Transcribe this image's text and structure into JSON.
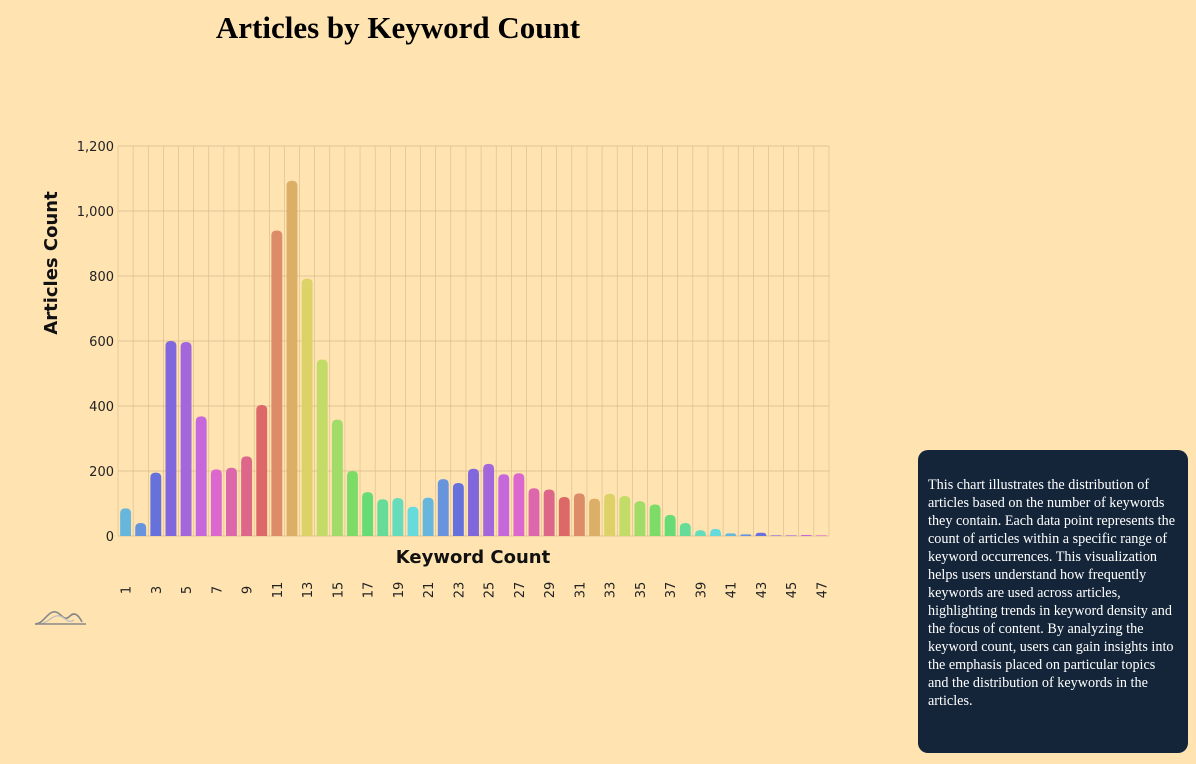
{
  "chart_data": {
    "type": "bar",
    "title": "Articles by Keyword Count",
    "xlabel": "Keyword Count",
    "ylabel": "Articles Count",
    "ylim": [
      0,
      1200
    ],
    "yticks": [
      0,
      200,
      400,
      600,
      800,
      1000,
      1200
    ],
    "ytick_labels": [
      "0",
      "200",
      "400",
      "600",
      "800",
      "1,000",
      "1,200"
    ],
    "grid": true,
    "categories": [
      "1",
      "2",
      "3",
      "4",
      "5",
      "6",
      "7",
      "8",
      "9",
      "10",
      "11",
      "12",
      "13",
      "14",
      "15",
      "16",
      "17",
      "18",
      "19",
      "20",
      "21",
      "22",
      "23",
      "24",
      "25",
      "26",
      "27",
      "28",
      "29",
      "30",
      "31",
      "32",
      "33",
      "34",
      "35",
      "36",
      "37",
      "38",
      "39",
      "40",
      "41",
      "42",
      "43",
      "44",
      "45",
      "46",
      "47"
    ],
    "values": [
      85,
      40,
      195,
      600,
      597,
      368,
      205,
      210,
      245,
      403,
      940,
      1093,
      792,
      543,
      358,
      200,
      135,
      113,
      117,
      90,
      118,
      175,
      163,
      207,
      222,
      190,
      193,
      147,
      143,
      120,
      131,
      115,
      130,
      123,
      107,
      97,
      65,
      40,
      18,
      22,
      8,
      5,
      10,
      2,
      2,
      3,
      2
    ],
    "colors": [
      "#67B7DC",
      "#6794DC",
      "#6771DC",
      "#8067DC",
      "#A367DC",
      "#C767DC",
      "#DC67CE",
      "#DC67AB",
      "#DC6788",
      "#DC6967",
      "#DC8C67",
      "#DCAF67",
      "#DCD267",
      "#C3DC67",
      "#A0DC67",
      "#7DDC67",
      "#67DC75",
      "#67DC98",
      "#67DCBB",
      "#67DADC",
      "#67B7DC",
      "#6794DC",
      "#6771DC",
      "#8067DC",
      "#A367DC",
      "#C767DC",
      "#DC67CE",
      "#DC67AB",
      "#DC6788",
      "#DC6967",
      "#DC8C67",
      "#DCAF67",
      "#DCD267",
      "#C3DC67",
      "#A0DC67",
      "#7DDC67",
      "#67DC75",
      "#67DC98",
      "#67DCBB",
      "#67DADC",
      "#67B7DC",
      "#6794DC",
      "#6771DC",
      "#8067DC",
      "#A367DC",
      "#C767DC",
      "#DC67CE"
    ]
  },
  "info": {
    "text": "This chart illustrates the distribution of articles based on the number of keywords they contain. Each data point represents the count of articles within a specific range of keyword occurrences. This visualization helps users understand how frequently keywords are used across articles, highlighting trends in keyword density and the focus of content. By analyzing the keyword count, users can gain insights into the emphasis placed on particular topics and the distribution of keywords in the articles."
  },
  "colors": {
    "background": "#FFE4B2",
    "grid": "#D9B98A",
    "info_box": "#14253A"
  },
  "icons": {
    "logo": "wave-logo-icon"
  }
}
